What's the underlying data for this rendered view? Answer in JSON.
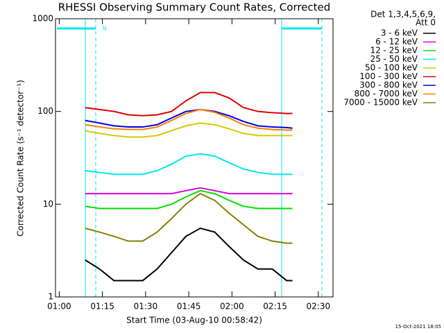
{
  "chart_data": {
    "type": "line",
    "title": "RHESSI Observing Summary Count Rates, Corrected",
    "x_label": "Start Time (03-Aug-10 00:58:42)",
    "y_label": "Corrected Count Rate (s⁻¹ detector⁻¹)",
    "legend_title": [
      "Det 1,3,4,5,6,9,",
      "Att 0"
    ],
    "annotation": "N",
    "footer": "15-Oct-2021 18:05",
    "log_y": true,
    "legend": "right",
    "xlim": [
      58.7,
      155.1
    ],
    "ylim": [
      1,
      1000
    ],
    "xticks": [
      {
        "value": 60,
        "label": "01:00"
      },
      {
        "value": 75,
        "label": "01:15"
      },
      {
        "value": 90,
        "label": "01:30"
      },
      {
        "value": 105,
        "label": "01:45"
      },
      {
        "value": 120,
        "label": "02:00"
      },
      {
        "value": 135,
        "label": "02:15"
      },
      {
        "value": 150,
        "label": "02:30"
      }
    ],
    "yticks": [
      1,
      10,
      100,
      1000
    ],
    "x": [
      69,
      74,
      79,
      84,
      89,
      94,
      99,
      104,
      109,
      114,
      119,
      124,
      129,
      134,
      139,
      141
    ],
    "series": [
      {
        "name": "3 - 6 keV",
        "color": "#000000",
        "values": [
          2.5,
          2,
          1.5,
          1.5,
          1.5,
          2,
          3,
          4.5,
          5.5,
          5,
          3.5,
          2.5,
          2,
          2,
          1.5,
          1.5
        ]
      },
      {
        "name": "6 - 12 keV",
        "color": "#e000e0",
        "values": [
          13,
          13,
          13,
          13,
          13,
          13,
          13,
          14,
          15,
          14,
          13,
          13,
          13,
          13,
          13,
          13
        ]
      },
      {
        "name": "12 - 25 keV",
        "color": "#00e000",
        "values": [
          9.5,
          9,
          9,
          9,
          9,
          9,
          10,
          12,
          14,
          13,
          11,
          9.5,
          9,
          9,
          9,
          9
        ]
      },
      {
        "name": "25 - 50 keV",
        "color": "#00e8e8",
        "values": [
          23,
          22,
          21,
          21,
          21,
          23,
          27,
          33,
          35,
          33,
          28,
          24,
          22,
          21,
          21,
          21
        ]
      },
      {
        "name": "50 - 100 keV",
        "color": "#d8c800",
        "values": [
          62,
          58,
          55,
          53,
          53,
          55,
          62,
          70,
          75,
          72,
          65,
          58,
          55,
          55,
          55,
          55
        ]
      },
      {
        "name": "100 - 300 keV",
        "color": "#e00000",
        "values": [
          110,
          105,
          100,
          92,
          90,
          92,
          100,
          130,
          160,
          160,
          140,
          110,
          100,
          97,
          95,
          95
        ]
      },
      {
        "name": "300 - 800 keV",
        "color": "#0000e0",
        "values": [
          80,
          75,
          70,
          68,
          68,
          72,
          85,
          100,
          105,
          100,
          90,
          78,
          70,
          68,
          67,
          66
        ]
      },
      {
        "name": "800 - 7000 keV",
        "color": "#ff8000",
        "values": [
          72,
          68,
          65,
          64,
          64,
          68,
          80,
          95,
          105,
          98,
          85,
          72,
          66,
          64,
          63,
          63
        ]
      },
      {
        "name": "7000 - 15000 keV",
        "color": "#808000",
        "values": [
          5.5,
          5,
          4.5,
          4,
          4,
          5,
          7,
          10,
          13,
          11,
          8,
          6,
          4.5,
          4,
          3.8,
          3.8
        ]
      }
    ]
  }
}
